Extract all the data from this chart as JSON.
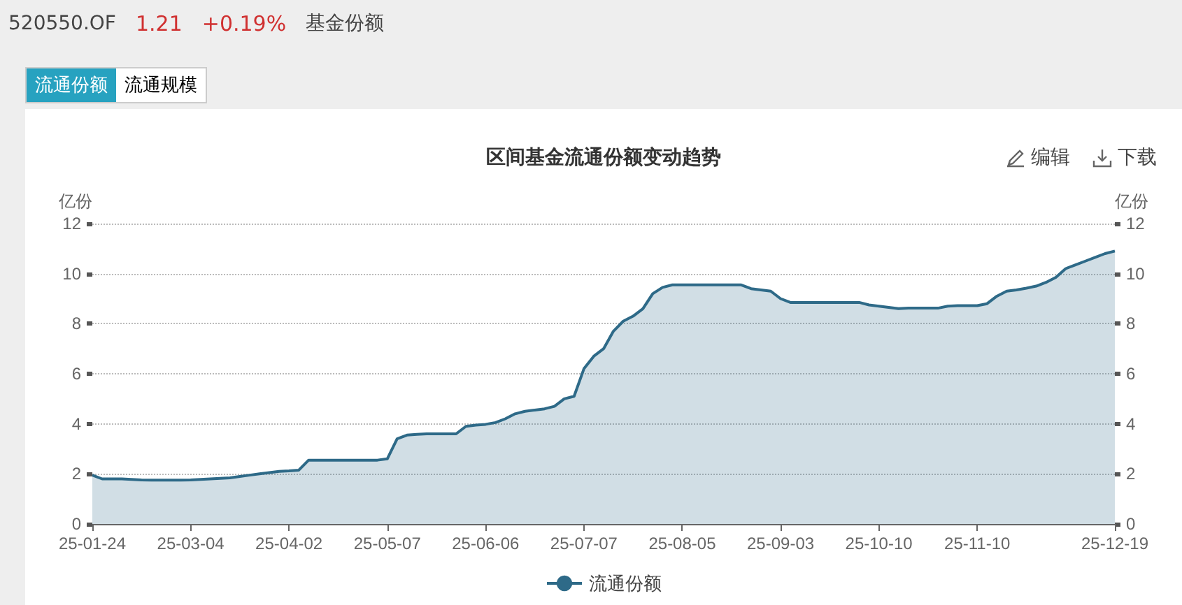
{
  "chart_data": {
    "type": "area",
    "title": "区间基金流通份额变动趋势",
    "ylabel": "亿份",
    "y2label": "亿份",
    "annotations": [
      "520550.OF",
      "1.21",
      "+0.19%",
      "基金份额",
      "流通份额",
      "流通规模",
      "编辑",
      "下载"
    ],
    "categories": [
      "25-01-24",
      null,
      null,
      null,
      null,
      null,
      null,
      null,
      null,
      null,
      "25-03-04",
      null,
      null,
      null,
      null,
      null,
      null,
      null,
      null,
      null,
      "25-04-02",
      null,
      null,
      null,
      null,
      null,
      null,
      null,
      null,
      null,
      "25-05-07",
      null,
      null,
      null,
      null,
      null,
      null,
      null,
      null,
      null,
      "25-06-06",
      null,
      null,
      null,
      null,
      null,
      null,
      null,
      null,
      null,
      "25-07-07",
      null,
      null,
      null,
      null,
      null,
      null,
      null,
      null,
      null,
      "25-08-05",
      null,
      null,
      null,
      null,
      null,
      null,
      null,
      null,
      null,
      "25-09-03",
      null,
      null,
      null,
      null,
      null,
      null,
      null,
      null,
      null,
      "25-10-10",
      null,
      null,
      null,
      null,
      null,
      null,
      null,
      null,
      null,
      "25-11-10",
      null,
      null,
      null,
      null,
      null,
      null,
      null,
      null,
      null,
      null,
      null,
      null,
      null,
      "25-12-19"
    ],
    "series": [
      {
        "name": "流通份额",
        "color": "#2e6a88",
        "values": [
          1.95,
          1.8,
          1.8,
          1.8,
          1.78,
          1.76,
          1.75,
          1.75,
          1.75,
          1.75,
          1.76,
          1.78,
          1.8,
          1.82,
          1.84,
          1.9,
          1.95,
          2.0,
          2.05,
          2.1,
          2.12,
          2.15,
          2.55,
          2.55,
          2.55,
          2.55,
          2.55,
          2.55,
          2.55,
          2.55,
          2.6,
          3.4,
          3.55,
          3.58,
          3.6,
          3.6,
          3.6,
          3.6,
          3.9,
          3.95,
          3.98,
          4.05,
          4.2,
          4.4,
          4.5,
          4.55,
          4.6,
          4.7,
          5.0,
          5.1,
          6.2,
          6.7,
          7.0,
          7.7,
          8.1,
          8.3,
          8.6,
          9.2,
          9.45,
          9.55,
          9.55,
          9.55,
          9.55,
          9.55,
          9.55,
          9.55,
          9.55,
          9.4,
          9.35,
          9.3,
          9.0,
          8.85,
          8.85,
          8.85,
          8.85,
          8.85,
          8.85,
          8.85,
          8.85,
          8.75,
          8.7,
          8.65,
          8.6,
          8.62,
          8.62,
          8.62,
          8.62,
          8.7,
          8.72,
          8.72,
          8.72,
          8.8,
          9.1,
          9.3,
          9.35,
          9.42,
          9.5,
          9.65,
          9.85,
          10.2,
          10.35,
          10.5,
          10.65,
          10.8,
          10.9
        ]
      }
    ],
    "ylim": [
      0,
      12
    ],
    "yticks": [
      0,
      2,
      4,
      6,
      8,
      10,
      12
    ],
    "y2lim": [
      0,
      12
    ],
    "y2ticks": [
      0,
      2,
      4,
      6,
      8,
      10,
      12
    ],
    "grid": "y",
    "legend": "bottom"
  }
}
